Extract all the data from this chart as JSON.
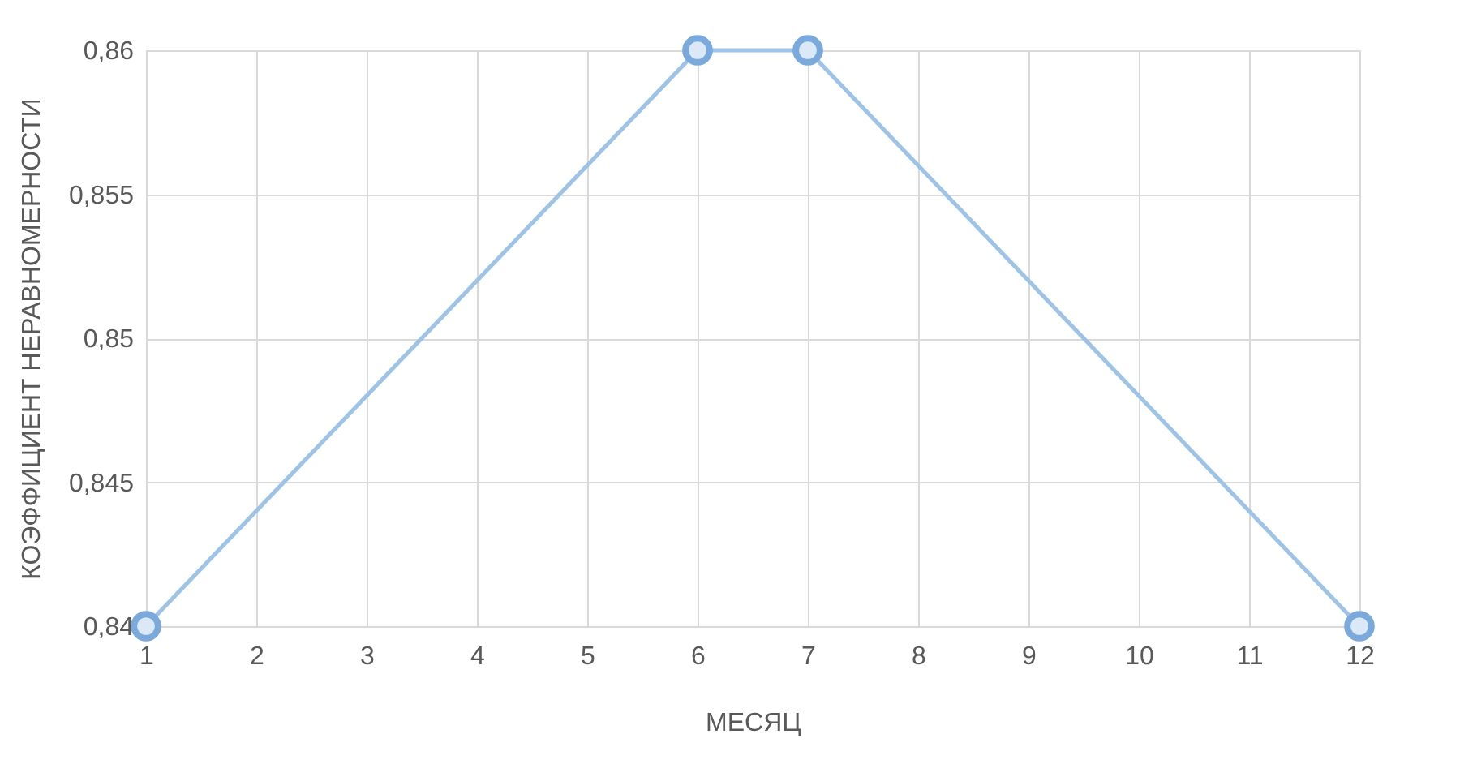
{
  "chart_data": {
    "type": "line",
    "xlabel": "МЕСЯЦ",
    "ylabel": "КОЭФФИЦИЕНТ НЕРАВНОМЕРНОСТИ",
    "x": [
      1,
      6,
      7,
      12
    ],
    "series": [
      {
        "color": "#9dc3e6",
        "values": [
          0.84,
          0.86,
          0.86,
          0.84
        ]
      }
    ],
    "xlim": [
      1,
      12
    ],
    "xticks": [
      1,
      2,
      3,
      4,
      5,
      6,
      7,
      8,
      9,
      10,
      11,
      12
    ],
    "ylim": [
      0.84,
      0.86
    ],
    "yticks": [
      {
        "value": 0.84,
        "label": "0,84"
      },
      {
        "value": 0.845,
        "label": "0,845"
      },
      {
        "value": 0.85,
        "label": "0,85"
      },
      {
        "value": 0.855,
        "label": "0,855"
      },
      {
        "value": 0.86,
        "label": "0,86"
      }
    ],
    "grid": true,
    "marker": "circle",
    "line_style": "solid"
  }
}
